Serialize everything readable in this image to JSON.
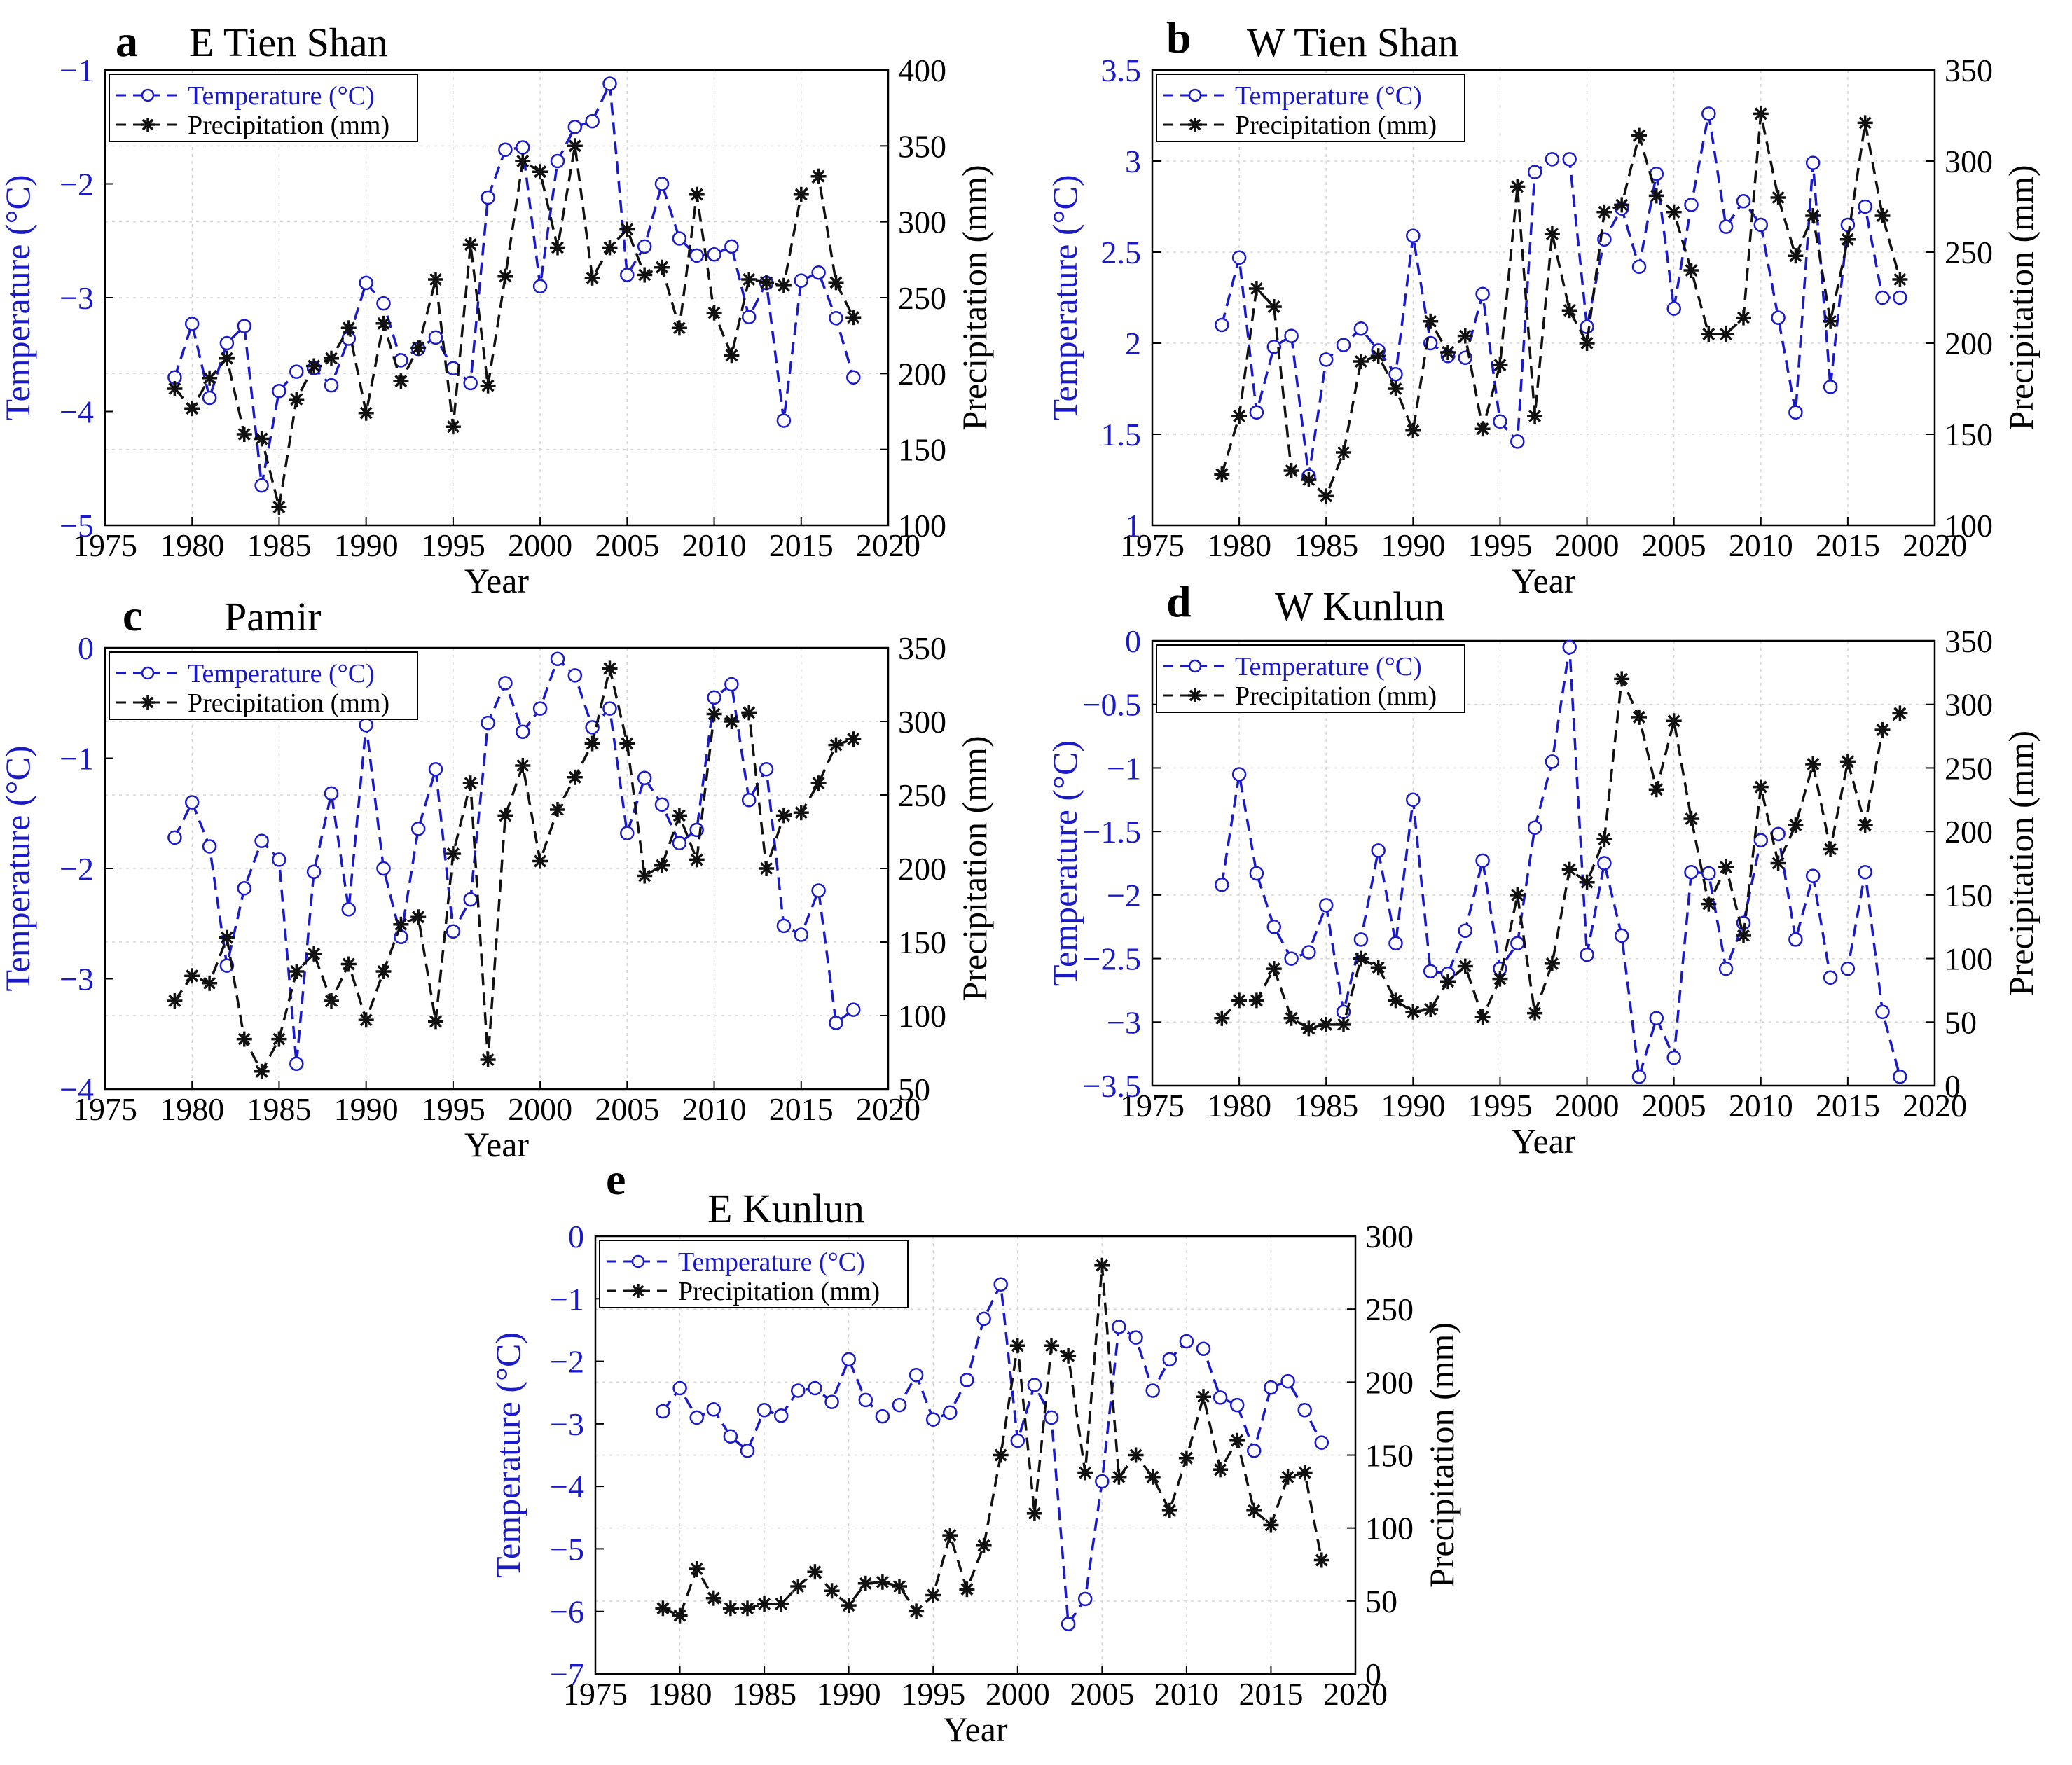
{
  "figure": {
    "colors": {
      "temperature": "#1a1ac8",
      "precipitation": "#111111",
      "grid": "#d6d6d6",
      "axis": "#000000"
    },
    "x_label": "Year",
    "y_left_label": "Temperature (°C)",
    "y_right_label": "Precipitation (mm)"
  },
  "chart_data": [
    {
      "type": "line",
      "letter": "a",
      "title": "E Tien Shan",
      "xlabel": "Year",
      "ylabel": "Temperature (°C)",
      "y2label": "Precipitation (mm)",
      "xlim": [
        1975,
        2020
      ],
      "xticks": [
        1975,
        1980,
        1985,
        1990,
        1995,
        2000,
        2005,
        2010,
        2015,
        2020
      ],
      "ylim": [
        -5,
        -1
      ],
      "yticks": [
        -5,
        -4,
        -3,
        -2,
        -1
      ],
      "ytick_labels": [
        "−5",
        "−4",
        "−3",
        "−2",
        "−1"
      ],
      "y2lim": [
        100,
        400
      ],
      "y2ticks": [
        100,
        150,
        200,
        250,
        300,
        350,
        400
      ],
      "y2tick_labels": [
        "100",
        "150",
        "200",
        "250",
        "300",
        "350",
        "400"
      ],
      "legend": [
        "Temperature (°C)",
        "Precipitation (mm)"
      ],
      "x": [
        1979,
        1980,
        1981,
        1982,
        1983,
        1984,
        1985,
        1986,
        1987,
        1988,
        1989,
        1990,
        1991,
        1992,
        1993,
        1994,
        1995,
        1996,
        1997,
        1998,
        1999,
        2000,
        2001,
        2002,
        2003,
        2004,
        2005,
        2006,
        2007,
        2008,
        2009,
        2010,
        2011,
        2012,
        2013,
        2014,
        2015,
        2016,
        2017,
        2018
      ],
      "series": [
        {
          "name": "Temperature (°C)",
          "axis": "left",
          "values": [
            -3.7,
            -3.23,
            -3.88,
            -3.4,
            -3.25,
            -4.65,
            -3.82,
            -3.65,
            -3.62,
            -3.77,
            -3.36,
            -2.87,
            -3.05,
            -3.55,
            -3.45,
            -3.35,
            -3.62,
            -3.75,
            -2.12,
            -1.7,
            -1.68,
            -2.9,
            -1.8,
            -1.5,
            -1.45,
            -1.12,
            -2.8,
            -2.55,
            -2.0,
            -2.48,
            -2.63,
            -2.62,
            -2.55,
            -3.17,
            -2.87,
            -4.08,
            -2.85,
            -2.78,
            -3.18,
            -3.7
          ]
        },
        {
          "name": "Precipitation (mm)",
          "axis": "right",
          "values": [
            190,
            177,
            197,
            210,
            160,
            157,
            112,
            183,
            205,
            210,
            230,
            174,
            233,
            195,
            217,
            262,
            165,
            285,
            192,
            264,
            340,
            333,
            283,
            350,
            263,
            283,
            295,
            265,
            270,
            230,
            318,
            240,
            212,
            262,
            260,
            258,
            318,
            330,
            260,
            237
          ]
        }
      ]
    },
    {
      "type": "line",
      "letter": "b",
      "title": "W Tien Shan",
      "xlabel": "Year",
      "ylabel": "Temperature (°C)",
      "y2label": "Precipitation (mm)",
      "xlim": [
        1975,
        2020
      ],
      "xticks": [
        1975,
        1980,
        1985,
        1990,
        1995,
        2000,
        2005,
        2010,
        2015,
        2020
      ],
      "ylim": [
        1,
        3.5
      ],
      "yticks": [
        1,
        1.5,
        2,
        2.5,
        3,
        3.5
      ],
      "ytick_labels": [
        "1",
        "1.5",
        "2",
        "2.5",
        "3",
        "3.5"
      ],
      "y2lim": [
        100,
        350
      ],
      "y2ticks": [
        100,
        150,
        200,
        250,
        300,
        350
      ],
      "y2tick_labels": [
        "100",
        "150",
        "200",
        "250",
        "300",
        "350"
      ],
      "legend": [
        "Temperature (°C)",
        "Precipitation (mm)"
      ],
      "x": [
        1979,
        1980,
        1981,
        1982,
        1983,
        1984,
        1985,
        1986,
        1987,
        1988,
        1989,
        1990,
        1991,
        1992,
        1993,
        1994,
        1995,
        1996,
        1997,
        1998,
        1999,
        2000,
        2001,
        2002,
        2003,
        2004,
        2005,
        2006,
        2007,
        2008,
        2009,
        2010,
        2011,
        2012,
        2013,
        2014,
        2015,
        2016,
        2017,
        2018
      ],
      "series": [
        {
          "name": "Temperature (°C)",
          "axis": "left",
          "values": [
            2.1,
            2.47,
            1.62,
            1.98,
            2.04,
            1.27,
            1.91,
            1.99,
            2.08,
            1.96,
            1.83,
            2.59,
            2.0,
            1.93,
            1.92,
            2.27,
            1.57,
            1.46,
            2.94,
            3.01,
            3.01,
            2.09,
            2.57,
            2.74,
            2.42,
            2.93,
            2.19,
            2.76,
            3.26,
            2.64,
            2.78,
            2.65,
            2.14,
            1.62,
            2.99,
            1.76,
            2.65,
            2.75,
            2.25,
            2.25
          ]
        },
        {
          "name": "Precipitation (mm)",
          "axis": "right",
          "values": [
            128,
            160,
            230,
            220,
            130,
            125,
            116,
            140,
            190,
            193,
            175,
            152,
            212,
            195,
            204,
            153,
            188,
            286,
            160,
            260,
            218,
            200,
            272,
            276,
            314,
            281,
            272,
            240,
            205,
            205,
            214,
            326,
            280,
            248,
            270,
            212,
            257,
            321,
            270,
            235
          ]
        }
      ]
    },
    {
      "type": "line",
      "letter": "c",
      "title": "Pamir",
      "xlabel": "Year",
      "ylabel": "Temperature (°C)",
      "y2label": "Precipitation (mm)",
      "xlim": [
        1975,
        2020
      ],
      "xticks": [
        1975,
        1980,
        1985,
        1990,
        1995,
        2000,
        2005,
        2010,
        2015,
        2020
      ],
      "ylim": [
        -4,
        0
      ],
      "yticks": [
        -4,
        -3,
        -2,
        -1,
        0
      ],
      "ytick_labels": [
        "−4",
        "−3",
        "−2",
        "−1",
        "0"
      ],
      "y2lim": [
        50,
        350
      ],
      "y2ticks": [
        50,
        100,
        150,
        200,
        250,
        300,
        350
      ],
      "y2tick_labels": [
        "50",
        "100",
        "150",
        "200",
        "250",
        "300",
        "350"
      ],
      "legend": [
        "Temperature (°C)",
        "Precipitation (mm)"
      ],
      "x": [
        1979,
        1980,
        1981,
        1982,
        1983,
        1984,
        1985,
        1986,
        1987,
        1988,
        1989,
        1990,
        1991,
        1992,
        1993,
        1994,
        1995,
        1996,
        1997,
        1998,
        1999,
        2000,
        2001,
        2002,
        2003,
        2004,
        2005,
        2006,
        2007,
        2008,
        2009,
        2010,
        2011,
        2012,
        2013,
        2014,
        2015,
        2016,
        2017,
        2018
      ],
      "series": [
        {
          "name": "Temperature (°C)",
          "axis": "left",
          "values": [
            -1.72,
            -1.4,
            -1.8,
            -2.88,
            -2.18,
            -1.75,
            -1.92,
            -3.77,
            -2.03,
            -1.32,
            -2.37,
            -0.7,
            -2.0,
            -2.62,
            -1.64,
            -1.1,
            -2.57,
            -2.28,
            -0.68,
            -0.32,
            -0.76,
            -0.55,
            -0.1,
            -0.25,
            -0.72,
            -0.55,
            -1.68,
            -1.18,
            -1.42,
            -1.77,
            -1.65,
            -0.45,
            -0.33,
            -1.38,
            -1.1,
            -2.52,
            -2.6,
            -2.2,
            -3.4,
            -3.28
          ]
        },
        {
          "name": "Precipitation (mm)",
          "axis": "right",
          "values": [
            110,
            127,
            122,
            153,
            84,
            62,
            84,
            130,
            142,
            110,
            135,
            97,
            130,
            162,
            167,
            96,
            210,
            258,
            70,
            236,
            270,
            205,
            240,
            262,
            285,
            336,
            285,
            195,
            202,
            236,
            206,
            305,
            300,
            306,
            200,
            236,
            238,
            258,
            284,
            288
          ]
        }
      ]
    },
    {
      "type": "line",
      "letter": "d",
      "title": "W Kunlun",
      "xlabel": "Year",
      "ylabel": "Temperature (°C)",
      "y2label": "Precipitation (mm)",
      "xlim": [
        1975,
        2020
      ],
      "xticks": [
        1975,
        1980,
        1985,
        1990,
        1995,
        2000,
        2005,
        2010,
        2015,
        2020
      ],
      "ylim": [
        -3.5,
        0
      ],
      "yticks": [
        -3.5,
        -3,
        -2.5,
        -2,
        -1.5,
        -1,
        -0.5,
        0
      ],
      "ytick_labels": [
        "−3.5",
        "−3",
        "−2.5",
        "−2",
        "−1.5",
        "−1",
        "−0.5",
        "0"
      ],
      "y2lim": [
        0,
        350
      ],
      "y2ticks": [
        0,
        50,
        100,
        150,
        200,
        250,
        300,
        350
      ],
      "y2tick_labels": [
        "0",
        "50",
        "100",
        "150",
        "200",
        "250",
        "300",
        "350"
      ],
      "legend": [
        "Temperature (°C)",
        "Precipitation (mm)"
      ],
      "x": [
        1979,
        1980,
        1981,
        1982,
        1983,
        1984,
        1985,
        1986,
        1987,
        1988,
        1989,
        1990,
        1991,
        1992,
        1993,
        1994,
        1995,
        1996,
        1997,
        1998,
        1999,
        2000,
        2001,
        2002,
        2003,
        2004,
        2005,
        2006,
        2007,
        2008,
        2009,
        2010,
        2011,
        2012,
        2013,
        2014,
        2015,
        2016,
        2017,
        2018
      ],
      "series": [
        {
          "name": "Temperature (°C)",
          "axis": "left",
          "values": [
            -1.92,
            -1.05,
            -1.83,
            -2.25,
            -2.5,
            -2.45,
            -2.08,
            -2.92,
            -2.35,
            -1.65,
            -2.38,
            -1.25,
            -2.6,
            -2.62,
            -2.28,
            -1.73,
            -2.58,
            -2.38,
            -1.47,
            -0.95,
            -0.05,
            -2.47,
            -1.75,
            -2.32,
            -3.43,
            -2.97,
            -3.28,
            -1.82,
            -1.83,
            -2.58,
            -2.22,
            -1.57,
            -1.52,
            -2.35,
            -1.85,
            -2.65,
            -2.58,
            -1.82,
            -2.92,
            -3.43
          ]
        },
        {
          "name": "Precipitation (mm)",
          "axis": "right",
          "values": [
            53,
            67,
            67,
            92,
            53,
            45,
            48,
            48,
            100,
            93,
            67,
            58,
            60,
            82,
            94,
            54,
            84,
            150,
            57,
            96,
            170,
            160,
            194,
            320,
            290,
            233,
            287,
            210,
            143,
            172,
            118,
            235,
            175,
            205,
            253,
            186,
            255,
            205,
            280,
            293
          ]
        }
      ]
    },
    {
      "type": "line",
      "letter": "e",
      "title": "E Kunlun",
      "xlabel": "Year",
      "ylabel": "Temperature (°C)",
      "y2label": "Precipitation (mm)",
      "xlim": [
        1975,
        2020
      ],
      "xticks": [
        1975,
        1980,
        1985,
        1990,
        1995,
        2000,
        2005,
        2010,
        2015,
        2020
      ],
      "ylim": [
        -7,
        0
      ],
      "yticks": [
        -7,
        -6,
        -5,
        -4,
        -3,
        -2,
        -1,
        0
      ],
      "ytick_labels": [
        "−7",
        "−6",
        "−5",
        "−4",
        "−3",
        "−2",
        "−1",
        "0"
      ],
      "y2lim": [
        0,
        300
      ],
      "y2ticks": [
        0,
        50,
        100,
        150,
        200,
        250,
        300
      ],
      "y2tick_labels": [
        "0",
        "50",
        "100",
        "150",
        "200",
        "250",
        "300"
      ],
      "legend": [
        "Temperature (°C)",
        "Precipitation (mm)"
      ],
      "x": [
        1979,
        1980,
        1981,
        1982,
        1983,
        1984,
        1985,
        1986,
        1987,
        1988,
        1989,
        1990,
        1991,
        1992,
        1993,
        1994,
        1995,
        1996,
        1997,
        1998,
        1999,
        2000,
        2001,
        2002,
        2003,
        2004,
        2005,
        2006,
        2007,
        2008,
        2009,
        2010,
        2011,
        2012,
        2013,
        2014,
        2015,
        2016,
        2017,
        2018
      ],
      "series": [
        {
          "name": "Temperature (°C)",
          "axis": "left",
          "values": [
            -2.8,
            -2.43,
            -2.9,
            -2.77,
            -3.2,
            -3.43,
            -2.78,
            -2.87,
            -2.47,
            -2.43,
            -2.65,
            -1.97,
            -2.62,
            -2.88,
            -2.7,
            -2.22,
            -2.93,
            -2.82,
            -2.3,
            -1.32,
            -0.77,
            -3.27,
            -2.38,
            -2.9,
            -6.2,
            -5.8,
            -3.92,
            -1.45,
            -1.62,
            -2.47,
            -1.97,
            -1.68,
            -1.8,
            -2.58,
            -2.7,
            -3.43,
            -2.42,
            -2.32,
            -2.78,
            -3.3
          ]
        },
        {
          "name": "Precipitation (mm)",
          "axis": "right",
          "values": [
            45,
            40,
            72,
            52,
            45,
            45,
            48,
            48,
            60,
            70,
            57,
            47,
            62,
            63,
            60,
            43,
            54,
            95,
            58,
            88,
            150,
            225,
            110,
            225,
            218,
            138,
            280,
            135,
            150,
            135,
            112,
            148,
            190,
            140,
            160,
            112,
            102,
            135,
            138,
            78
          ]
        }
      ]
    }
  ]
}
